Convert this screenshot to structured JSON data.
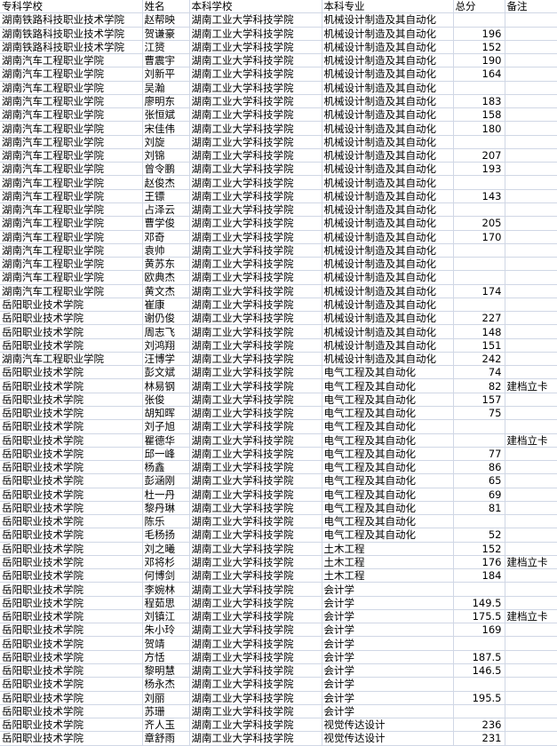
{
  "header": [
    "专科学校",
    "姓名",
    "本科学校",
    "本科专业",
    "总分",
    "备注"
  ],
  "rows": [
    [
      "湖南铁路科技职业技术学院",
      "赵帮映",
      "湖南工业大学科技学院",
      "机械设计制造及其自动化",
      "",
      ""
    ],
    [
      "湖南铁路科技职业技术学院",
      "贺谦豪",
      "湖南工业大学科技学院",
      "机械设计制造及其自动化",
      "196",
      ""
    ],
    [
      "湖南铁路科技职业技术学院",
      "江赟",
      "湖南工业大学科技学院",
      "机械设计制造及其自动化",
      "152",
      ""
    ],
    [
      "湖南汽车工程职业学院",
      "曹震宇",
      "湖南工业大学科技学院",
      "机械设计制造及其自动化",
      "190",
      ""
    ],
    [
      "湖南汽车工程职业学院",
      "刘新平",
      "湖南工业大学科技学院",
      "机械设计制造及其自动化",
      "164",
      ""
    ],
    [
      "湖南汽车工程职业学院",
      "吴瀚",
      "湖南工业大学科技学院",
      "机械设计制造及其自动化",
      "",
      ""
    ],
    [
      "湖南汽车工程职业学院",
      "廖明东",
      "湖南工业大学科技学院",
      "机械设计制造及其自动化",
      "183",
      ""
    ],
    [
      "湖南汽车工程职业学院",
      "张恒斌",
      "湖南工业大学科技学院",
      "机械设计制造及其自动化",
      "158",
      ""
    ],
    [
      "湖南汽车工程职业学院",
      "宋佳伟",
      "湖南工业大学科技学院",
      "机械设计制造及其自动化",
      "180",
      ""
    ],
    [
      "湖南汽车工程职业学院",
      "刘旋",
      "湖南工业大学科技学院",
      "机械设计制造及其自动化",
      "",
      ""
    ],
    [
      "湖南汽车工程职业学院",
      "刘锦",
      "湖南工业大学科技学院",
      "机械设计制造及其自动化",
      "207",
      ""
    ],
    [
      "湖南汽车工程职业学院",
      "曾令鹏",
      "湖南工业大学科技学院",
      "机械设计制造及其自动化",
      "193",
      ""
    ],
    [
      "湖南汽车工程职业学院",
      "赵俊杰",
      "湖南工业大学科技学院",
      "机械设计制造及其自动化",
      "",
      ""
    ],
    [
      "湖南汽车工程职业学院",
      "王镖",
      "湖南工业大学科技学院",
      "机械设计制造及其自动化",
      "143",
      ""
    ],
    [
      "湖南汽车工程职业学院",
      "占泽云",
      "湖南工业大学科技学院",
      "机械设计制造及其自动化",
      "",
      ""
    ],
    [
      "湖南汽车工程职业学院",
      "曹学俊",
      "湖南工业大学科技学院",
      "机械设计制造及其自动化",
      "205",
      ""
    ],
    [
      "湖南汽车工程职业学院",
      "邓奇",
      "湖南工业大学科技学院",
      "机械设计制造及其自动化",
      "170",
      ""
    ],
    [
      "湖南汽车工程职业学院",
      "袁帅",
      "湖南工业大学科技学院",
      "机械设计制造及其自动化",
      "",
      ""
    ],
    [
      "湖南汽车工程职业学院",
      "黄苏东",
      "湖南工业大学科技学院",
      "机械设计制造及其自动化",
      "",
      ""
    ],
    [
      "湖南汽车工程职业学院",
      "欧典杰",
      "湖南工业大学科技学院",
      "机械设计制造及其自动化",
      "",
      ""
    ],
    [
      "湖南汽车工程职业学院",
      "黄文杰",
      "湖南工业大学科技学院",
      "机械设计制造及其自动化",
      "174",
      ""
    ],
    [
      "岳阳职业技术学院",
      "崔康",
      "湖南工业大学科技学院",
      "机械设计制造及其自动化",
      "",
      ""
    ],
    [
      "岳阳职业技术学院",
      "谢仍俊",
      "湖南工业大学科技学院",
      "机械设计制造及其自动化",
      "227",
      ""
    ],
    [
      "岳阳职业技术学院",
      "周志飞",
      "湖南工业大学科技学院",
      "机械设计制造及其自动化",
      "148",
      ""
    ],
    [
      "岳阳职业技术学院",
      "刘鸿翔",
      "湖南工业大学科技学院",
      "机械设计制造及其自动化",
      "151",
      ""
    ],
    [
      "湖南汽车工程职业学院",
      "汪博学",
      "湖南工业大学科技学院",
      "机械设计制造及其自动化",
      "242",
      ""
    ],
    [
      "岳阳职业技术学院",
      "彭文斌",
      "湖南工业大学科技学院",
      "电气工程及其自动化",
      "74",
      ""
    ],
    [
      "岳阳职业技术学院",
      "林易钢",
      "湖南工业大学科技学院",
      "电气工程及其自动化",
      "82",
      "建档立卡"
    ],
    [
      "岳阳职业技术学院",
      "张俊",
      "湖南工业大学科技学院",
      "电气工程及其自动化",
      "157",
      ""
    ],
    [
      "岳阳职业技术学院",
      "胡知晖",
      "湖南工业大学科技学院",
      "电气工程及其自动化",
      "75",
      ""
    ],
    [
      "岳阳职业技术学院",
      "刘子旭",
      "湖南工业大学科技学院",
      "电气工程及其自动化",
      "",
      ""
    ],
    [
      "岳阳职业技术学院",
      "瞿德华",
      "湖南工业大学科技学院",
      "电气工程及其自动化",
      "",
      "建档立卡"
    ],
    [
      "岳阳职业技术学院",
      "邱一峰",
      "湖南工业大学科技学院",
      "电气工程及其自动化",
      "77",
      ""
    ],
    [
      "岳阳职业技术学院",
      "杨鑫",
      "湖南工业大学科技学院",
      "电气工程及其自动化",
      "86",
      ""
    ],
    [
      "岳阳职业技术学院",
      "彭涵刚",
      "湖南工业大学科技学院",
      "电气工程及其自动化",
      "65",
      ""
    ],
    [
      "岳阳职业技术学院",
      "杜一丹",
      "湖南工业大学科技学院",
      "电气工程及其自动化",
      "69",
      ""
    ],
    [
      "岳阳职业技术学院",
      "黎丹琳",
      "湖南工业大学科技学院",
      "电气工程及其自动化",
      "81",
      ""
    ],
    [
      "岳阳职业技术学院",
      "陈乐",
      "湖南工业大学科技学院",
      "电气工程及其自动化",
      "",
      ""
    ],
    [
      "岳阳职业技术学院",
      "毛杨扬",
      "湖南工业大学科技学院",
      "电气工程及其自动化",
      "52",
      ""
    ],
    [
      "岳阳职业技术学院",
      "刘之曦",
      "湖南工业大学科技学院",
      "土木工程",
      "152",
      ""
    ],
    [
      "岳阳职业技术学院",
      "邓将杉",
      "湖南工业大学科技学院",
      "土木工程",
      "176",
      "建档立卡"
    ],
    [
      "岳阳职业技术学院",
      "何博剑",
      "湖南工业大学科技学院",
      "土木工程",
      "184",
      ""
    ],
    [
      "岳阳职业技术学院",
      "李婉林",
      "湖南工业大学科技学院",
      "会计学",
      "",
      ""
    ],
    [
      "岳阳职业技术学院",
      "程茹思",
      "湖南工业大学科技学院",
      "会计学",
      "149.5",
      ""
    ],
    [
      "岳阳职业技术学院",
      "刘镇江",
      "湖南工业大学科技学院",
      "会计学",
      "175.5",
      "建档立卡"
    ],
    [
      "岳阳职业技术学院",
      "朱小玲",
      "湖南工业大学科技学院",
      "会计学",
      "169",
      ""
    ],
    [
      "岳阳职业技术学院",
      "贺靖",
      "湖南工业大学科技学院",
      "会计学",
      "",
      ""
    ],
    [
      "岳阳职业技术学院",
      "方恬",
      "湖南工业大学科技学院",
      "会计学",
      "187.5",
      ""
    ],
    [
      "岳阳职业技术学院",
      "黎明慧",
      "湖南工业大学科技学院",
      "会计学",
      "146.5",
      ""
    ],
    [
      "岳阳职业技术学院",
      "杨永杰",
      "湖南工业大学科技学院",
      "会计学",
      "",
      ""
    ],
    [
      "岳阳职业技术学院",
      "刘丽",
      "湖南工业大学科技学院",
      "会计学",
      "195.5",
      ""
    ],
    [
      "岳阳职业技术学院",
      "苏珊",
      "湖南工业大学科技学院",
      "会计学",
      "",
      ""
    ],
    [
      "岳阳职业技术学院",
      "齐人玉",
      "湖南工业大学科技学院",
      "视觉传达设计",
      "236",
      ""
    ],
    [
      "岳阳职业技术学院",
      "章舒雨",
      "湖南工业大学科技学院",
      "视觉传达设计",
      "231",
      ""
    ]
  ],
  "colors": {
    "gridline": "#d0d7e5"
  }
}
